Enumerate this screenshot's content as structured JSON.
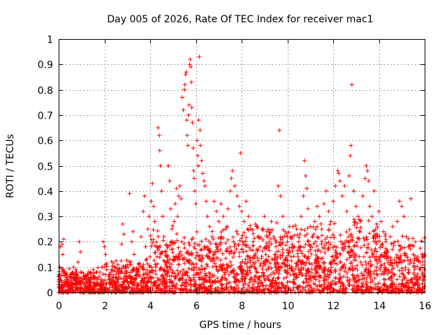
{
  "chart_data": {
    "type": "scatter",
    "title": "Day 005 of 2026, Rate Of TEC Index for receiver mac1",
    "xlabel": "GPS time / hours",
    "ylabel": "ROTI / TECUs",
    "xlim": [
      0,
      16
    ],
    "ylim": [
      0,
      1
    ],
    "xticks": [
      "0",
      "2",
      "4",
      "6",
      "8",
      "10",
      "12",
      "14",
      "16"
    ],
    "yticks": [
      "0",
      "0.1",
      "0.2",
      "0.3",
      "0.4",
      "0.5",
      "0.6",
      "0.7",
      "0.8",
      "0.9",
      "1"
    ],
    "grid": true,
    "marker": "+",
    "color": "#ff0000",
    "series": [
      {
        "name": "ROTI",
        "points": [
          [
            0.02,
            0.05
          ],
          [
            0.05,
            0.1
          ],
          [
            0.08,
            0.18
          ],
          [
            0.12,
            0.04
          ],
          [
            0.15,
            0.19
          ],
          [
            0.18,
            0.15
          ],
          [
            0.22,
            0.21
          ],
          [
            0.25,
            0.08
          ],
          [
            0.3,
            0.03
          ],
          [
            0.35,
            0.06
          ],
          [
            0.4,
            0.02
          ],
          [
            0.45,
            0.05
          ],
          [
            0.5,
            0.07
          ],
          [
            0.55,
            0.04
          ],
          [
            0.6,
            0.08
          ],
          [
            0.65,
            0.1
          ],
          [
            0.7,
            0.06
          ],
          [
            0.75,
            0.09
          ],
          [
            0.8,
            0.05
          ],
          [
            0.85,
            0.12
          ],
          [
            0.9,
            0.2
          ],
          [
            0.95,
            0.16
          ],
          [
            1.0,
            0.08
          ],
          [
            1.05,
            0.04
          ],
          [
            1.1,
            0.03
          ],
          [
            1.2,
            0.05
          ],
          [
            1.3,
            0.02
          ],
          [
            1.4,
            0.04
          ],
          [
            1.5,
            0.06
          ],
          [
            1.6,
            0.03
          ],
          [
            1.7,
            0.05
          ],
          [
            1.8,
            0.08
          ],
          [
            1.9,
            0.1
          ],
          [
            1.95,
            0.2
          ],
          [
            2.0,
            0.18
          ],
          [
            2.05,
            0.15
          ],
          [
            2.1,
            0.09
          ],
          [
            2.2,
            0.05
          ],
          [
            2.3,
            0.04
          ],
          [
            2.4,
            0.06
          ],
          [
            2.5,
            0.03
          ],
          [
            2.6,
            0.05
          ],
          [
            2.7,
            0.08
          ],
          [
            2.75,
            0.19
          ],
          [
            2.8,
            0.27
          ],
          [
            2.85,
            0.23
          ],
          [
            2.9,
            0.1
          ],
          [
            3.0,
            0.06
          ],
          [
            3.1,
            0.39
          ],
          [
            3.15,
            0.12
          ],
          [
            3.2,
            0.2
          ],
          [
            3.25,
            0.24
          ],
          [
            3.3,
            0.15
          ],
          [
            3.4,
            0.08
          ],
          [
            3.5,
            0.11
          ],
          [
            3.6,
            0.22
          ],
          [
            3.7,
            0.32
          ],
          [
            3.75,
            0.38
          ],
          [
            3.8,
            0.18
          ],
          [
            3.9,
            0.25
          ],
          [
            3.95,
            0.3
          ],
          [
            4.0,
            0.14
          ],
          [
            4.05,
            0.36
          ],
          [
            4.1,
            0.43
          ],
          [
            4.15,
            0.34
          ],
          [
            4.2,
            0.28
          ],
          [
            4.25,
            0.1
          ],
          [
            4.3,
            0.18
          ],
          [
            4.35,
            0.65
          ],
          [
            4.4,
            0.62
          ],
          [
            4.42,
            0.56
          ],
          [
            4.45,
            0.5
          ],
          [
            4.5,
            0.4
          ],
          [
            4.55,
            0.3
          ],
          [
            4.6,
            0.22
          ],
          [
            4.7,
            0.16
          ],
          [
            4.8,
            0.5
          ],
          [
            4.85,
            0.44
          ],
          [
            4.9,
            0.33
          ],
          [
            4.95,
            0.25
          ],
          [
            5.0,
            0.2
          ],
          [
            5.05,
            0.28
          ],
          [
            5.1,
            0.35
          ],
          [
            5.15,
            0.41
          ],
          [
            5.2,
            0.3
          ],
          [
            5.25,
            0.38
          ],
          [
            5.3,
            0.42
          ],
          [
            5.35,
            0.37
          ],
          [
            5.4,
            0.77
          ],
          [
            5.45,
            0.72
          ],
          [
            5.5,
            0.8
          ],
          [
            5.52,
            0.82
          ],
          [
            5.55,
            0.86
          ],
          [
            5.58,
            0.87
          ],
          [
            5.6,
            0.68
          ],
          [
            5.62,
            0.62
          ],
          [
            5.65,
            0.58
          ],
          [
            5.68,
            0.7
          ],
          [
            5.7,
            0.74
          ],
          [
            5.72,
            0.9
          ],
          [
            5.75,
            0.92
          ],
          [
            5.78,
            0.89
          ],
          [
            5.8,
            0.83
          ],
          [
            5.82,
            0.73
          ],
          [
            5.85,
            0.67
          ],
          [
            5.88,
            0.57
          ],
          [
            5.9,
            0.48
          ],
          [
            5.92,
            0.45
          ],
          [
            5.95,
            0.4
          ],
          [
            6.0,
            0.35
          ],
          [
            6.05,
            0.6
          ],
          [
            6.08,
            0.54
          ],
          [
            6.1,
            0.5
          ],
          [
            6.12,
            0.68
          ],
          [
            6.15,
            0.93
          ],
          [
            6.18,
            0.64
          ],
          [
            6.2,
            0.58
          ],
          [
            6.25,
            0.52
          ],
          [
            6.3,
            0.47
          ],
          [
            6.35,
            0.44
          ],
          [
            6.4,
            0.42
          ],
          [
            6.45,
            0.36
          ],
          [
            6.5,
            0.3
          ],
          [
            6.6,
            0.26
          ],
          [
            6.7,
            0.22
          ],
          [
            6.8,
            0.36
          ],
          [
            6.9,
            0.32
          ],
          [
            7.0,
            0.28
          ],
          [
            7.1,
            0.35
          ],
          [
            7.2,
            0.3
          ],
          [
            7.3,
            0.25
          ],
          [
            7.4,
            0.33
          ],
          [
            7.5,
            0.4
          ],
          [
            7.55,
            0.45
          ],
          [
            7.6,
            0.48
          ],
          [
            7.7,
            0.42
          ],
          [
            7.8,
            0.38
          ],
          [
            7.9,
            0.34
          ],
          [
            7.95,
            0.55
          ],
          [
            8.0,
            0.32
          ],
          [
            8.1,
            0.28
          ],
          [
            8.2,
            0.36
          ],
          [
            8.3,
            0.3
          ],
          [
            8.4,
            0.25
          ],
          [
            8.5,
            0.2
          ],
          [
            8.6,
            0.27
          ],
          [
            8.7,
            0.22
          ],
          [
            8.8,
            0.18
          ],
          [
            8.9,
            0.25
          ],
          [
            9.0,
            0.3
          ],
          [
            9.1,
            0.24
          ],
          [
            9.2,
            0.2
          ],
          [
            9.3,
            0.28
          ],
          [
            9.4,
            0.22
          ],
          [
            9.5,
            0.18
          ],
          [
            9.6,
            0.42
          ],
          [
            9.65,
            0.64
          ],
          [
            9.7,
            0.38
          ],
          [
            9.8,
            0.3
          ],
          [
            9.9,
            0.24
          ],
          [
            10.0,
            0.2
          ],
          [
            10.1,
            0.26
          ],
          [
            10.2,
            0.22
          ],
          [
            10.3,
            0.18
          ],
          [
            10.4,
            0.25
          ],
          [
            10.5,
            0.2
          ],
          [
            10.6,
            0.3
          ],
          [
            10.7,
            0.38
          ],
          [
            10.75,
            0.52
          ],
          [
            10.8,
            0.46
          ],
          [
            10.85,
            0.41
          ],
          [
            10.9,
            0.33
          ],
          [
            11.0,
            0.26
          ],
          [
            11.1,
            0.22
          ],
          [
            11.2,
            0.28
          ],
          [
            11.3,
            0.34
          ],
          [
            11.4,
            0.3
          ],
          [
            11.5,
            0.25
          ],
          [
            11.6,
            0.35
          ],
          [
            11.7,
            0.4
          ],
          [
            11.8,
            0.32
          ],
          [
            11.9,
            0.28
          ],
          [
            12.0,
            0.36
          ],
          [
            12.1,
            0.42
          ],
          [
            12.2,
            0.48
          ],
          [
            12.25,
            0.47
          ],
          [
            12.3,
            0.44
          ],
          [
            12.4,
            0.38
          ],
          [
            12.5,
            0.42
          ],
          [
            12.6,
            0.32
          ],
          [
            12.7,
            0.46
          ],
          [
            12.75,
            0.54
          ],
          [
            12.78,
            0.58
          ],
          [
            12.82,
            0.82
          ],
          [
            12.9,
            0.4
          ],
          [
            13.0,
            0.34
          ],
          [
            13.1,
            0.3
          ],
          [
            13.2,
            0.28
          ],
          [
            13.3,
            0.38
          ],
          [
            13.4,
            0.45
          ],
          [
            13.45,
            0.5
          ],
          [
            13.5,
            0.48
          ],
          [
            13.55,
            0.44
          ],
          [
            13.6,
            0.34
          ],
          [
            13.7,
            0.3
          ],
          [
            13.8,
            0.4
          ],
          [
            13.9,
            0.27
          ],
          [
            14.0,
            0.32
          ],
          [
            14.1,
            0.28
          ],
          [
            14.2,
            0.24
          ],
          [
            14.3,
            0.2
          ],
          [
            14.4,
            0.16
          ],
          [
            14.5,
            0.22
          ],
          [
            14.6,
            0.26
          ],
          [
            14.7,
            0.2
          ],
          [
            14.8,
            0.28
          ],
          [
            14.9,
            0.36
          ],
          [
            15.0,
            0.34
          ],
          [
            15.1,
            0.3
          ],
          [
            15.2,
            0.22
          ],
          [
            15.3,
            0.18
          ],
          [
            15.4,
            0.37
          ],
          [
            15.5,
            0.15
          ],
          [
            15.6,
            0.2
          ],
          [
            15.7,
            0.14
          ],
          [
            15.8,
            0.12
          ],
          [
            15.9,
            0.08
          ],
          [
            15.95,
            0.05
          ]
        ]
      }
    ]
  }
}
